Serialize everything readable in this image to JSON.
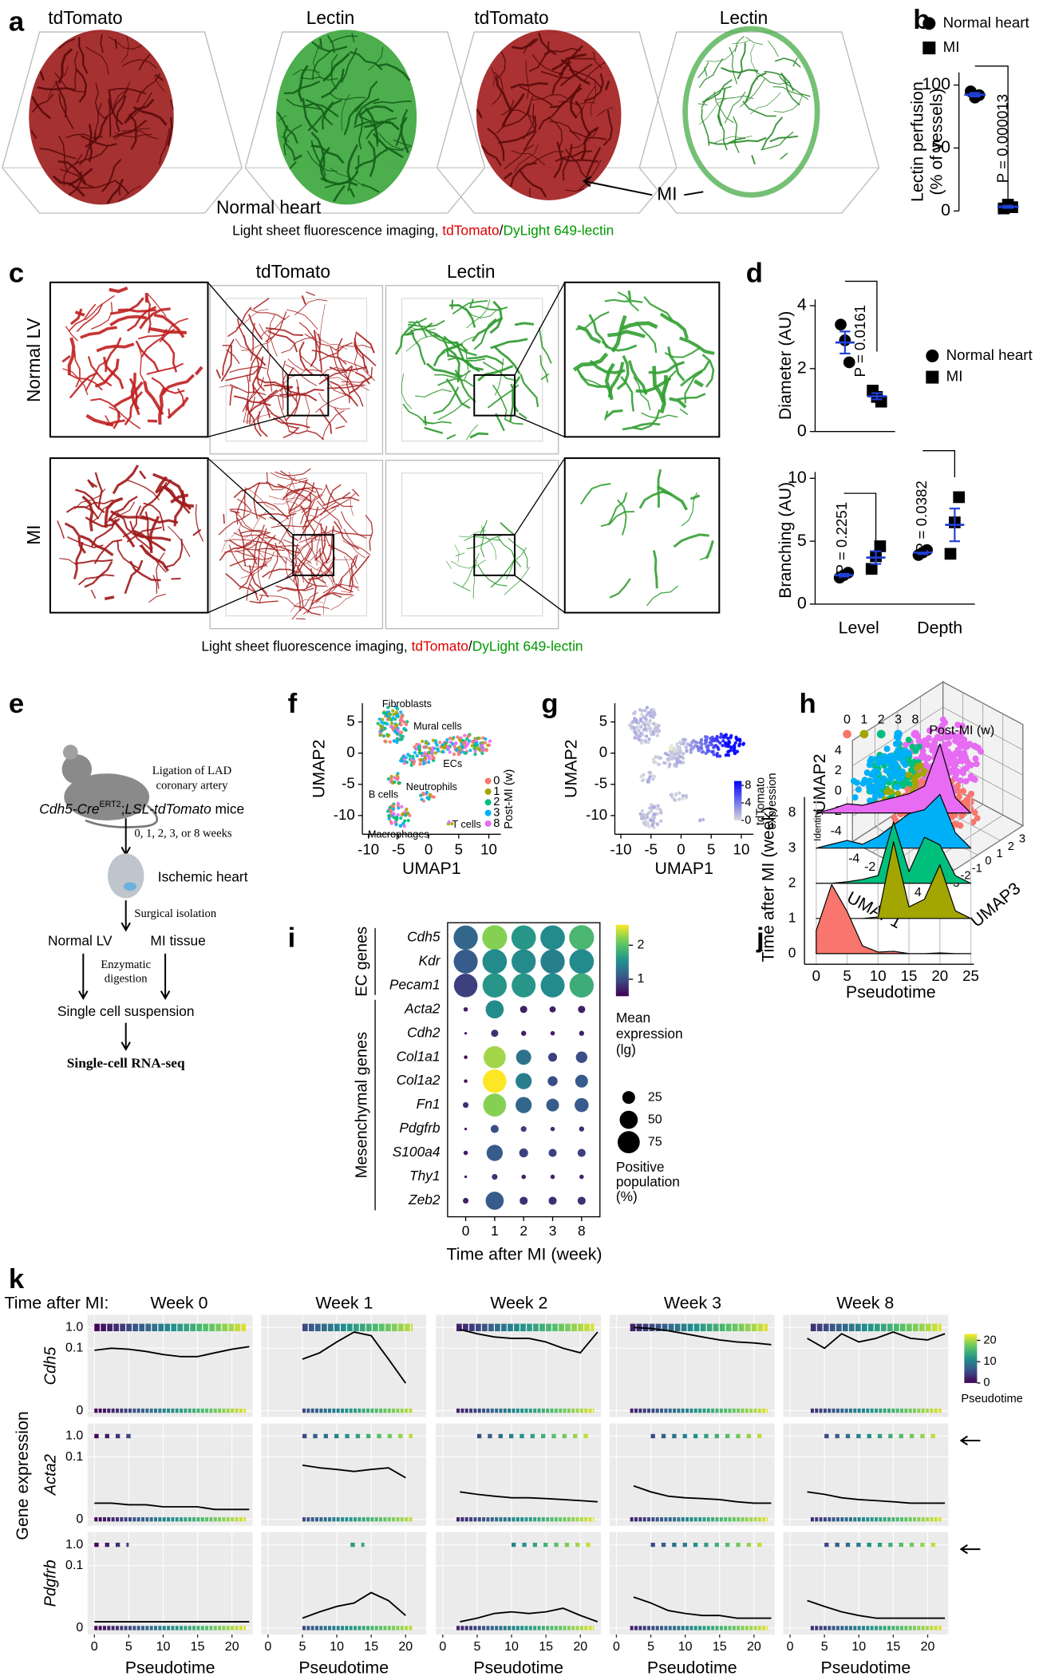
{
  "panel_letters": [
    "a",
    "b",
    "c",
    "d",
    "e",
    "f",
    "g",
    "h",
    "i",
    "j",
    "k"
  ],
  "figure_a": {
    "labels": [
      "tdTomato",
      "Lectin",
      "tdTomato",
      "Lectin"
    ],
    "normal_heart": "Normal heart",
    "mi": "MI",
    "caption": [
      "Light sheet fluorescence imaging, ",
      "tdTomato",
      "/",
      "DyLight 649-lectin"
    ]
  },
  "figure_c": {
    "columns": [
      "tdTomato",
      "Lectin"
    ],
    "rows": [
      "Normal LV",
      "MI"
    ],
    "caption": [
      "Light sheet fluorescence imaging, ",
      "tdTomato",
      "/",
      "DyLight 649-lectin"
    ]
  },
  "figure_e": {
    "ligation": [
      "Ligation of LAD",
      "coronary artery"
    ],
    "genotype": [
      "Cdh5-Cre",
      "ERT2",
      ";",
      "LSL-tdTomato",
      " mice"
    ],
    "times": "0, 1, 2, 3, or 8 weeks",
    "ischemic": "Ischemic heart",
    "surgical": "Surgical isolation",
    "normal_lv": "Normal LV",
    "mi_tissue": "MI tissue",
    "digestion": [
      "Enzymatic",
      "digestion"
    ],
    "suspension": "Single cell suspension",
    "sequencing": "Single-cell RNA-seq"
  },
  "chart_data": [
    {
      "type": "dot",
      "ylabel": [
        "Lectin perfusion",
        "(% of vessels)"
      ],
      "ylim": [
        0,
        110
      ],
      "yticks": [
        0,
        50,
        100
      ],
      "mean_color": "#1f3fd6",
      "annotations": [
        "P = 0.000013"
      ],
      "series": [
        {
          "name": "Normal heart",
          "marker": "circle",
          "values": [
            95,
            90,
            92
          ],
          "mean": 92.3,
          "sem": 1.5
        },
        {
          "name": "MI",
          "marker": "square",
          "values": [
            2,
            5,
            3
          ],
          "mean": 3.3,
          "sem": 0.9
        }
      ]
    },
    {
      "type": "dot",
      "ylabel": "Diameter (AU)",
      "ylim": [
        0,
        4.2
      ],
      "yticks": [
        0,
        2,
        4
      ],
      "mean_color": "#1f3fd6",
      "annotations": [
        "P = 0.0161"
      ],
      "series": [
        {
          "name": "Normal heart",
          "marker": "circle",
          "values": [
            3.4,
            2.9,
            2.2
          ],
          "mean": 2.83,
          "sem": 0.35
        },
        {
          "name": "MI",
          "marker": "square",
          "values": [
            1.3,
            1.1,
            0.95
          ],
          "mean": 1.12,
          "sem": 0.1
        }
      ]
    },
    {
      "type": "dot",
      "ylabel": "Branching (AU)",
      "ylim": [
        0,
        10.5
      ],
      "yticks": [
        0,
        5,
        10
      ],
      "categories": [
        "Level",
        "Depth"
      ],
      "mean_color": "#1f3fd6",
      "annotations": [
        "P = 0.2251",
        "P = 0.0382"
      ],
      "series": [
        {
          "name": "Normal heart",
          "marker": "circle",
          "values": [
            [
              2.1,
              2.3,
              2.5
            ],
            [
              3.9,
              4.1,
              4.3
            ]
          ],
          "mean": [
            2.3,
            4.1
          ],
          "sem": [
            0.12,
            0.12
          ]
        },
        {
          "name": "MI",
          "marker": "square",
          "values": [
            [
              2.8,
              3.8,
              4.6
            ],
            [
              4.0,
              6.5,
              8.5
            ]
          ],
          "mean": [
            3.7,
            6.3
          ],
          "sem": [
            0.5,
            1.3
          ]
        }
      ]
    },
    {
      "type": "umap",
      "xlabel": "UMAP1",
      "ylabel": "UMAP2",
      "xlim": [
        -11,
        12
      ],
      "ylim": [
        -13,
        8
      ],
      "xticks": [
        -10,
        -5,
        0,
        5,
        10
      ],
      "yticks": [
        -10,
        -5,
        0,
        5
      ],
      "cluster_labels": [
        "Fibroblasts",
        "Mural cells",
        "ECs",
        "B cells",
        "Neutrophils",
        "Macrophages",
        "T cells"
      ],
      "legend_title": "Post-MI (w)",
      "series": [
        {
          "name": "0",
          "color": "#f8766d"
        },
        {
          "name": "1",
          "color": "#a3a500"
        },
        {
          "name": "2",
          "color": "#00bf7d"
        },
        {
          "name": "3",
          "color": "#00b0f6"
        },
        {
          "name": "8",
          "color": "#e76bf3"
        }
      ]
    },
    {
      "type": "umap",
      "xlabel": "UMAP1",
      "ylabel": "UMAP2",
      "xlim": [
        -11,
        12
      ],
      "ylim": [
        -13,
        8
      ],
      "xticks": [
        -10,
        -5,
        0,
        5,
        10
      ],
      "yticks": [
        -10,
        -5,
        0,
        5
      ],
      "colorbar": {
        "label": [
          "tdTomato",
          "expression"
        ],
        "lim": [
          0,
          9
        ],
        "ticks": [
          0,
          4,
          8
        ],
        "colors": [
          "#d9d9d9",
          "#0000ff"
        ]
      }
    },
    {
      "type": "umap3d",
      "xlabel": "UMAP1",
      "ylabel": "UMAP2",
      "zlabel": "UMAP3",
      "xlim": [
        -5,
        5
      ],
      "ylim": [
        -5,
        5
      ],
      "zlim": [
        -4,
        4
      ],
      "xticks": [
        -4,
        -2,
        0,
        2,
        4
      ],
      "yticks": [
        -4,
        -2,
        0,
        2,
        4
      ],
      "zticks": [
        -3,
        -2,
        -1,
        0,
        1,
        2,
        3
      ],
      "legend_title": "Post-MI (w)",
      "series": [
        {
          "name": "0",
          "color": "#f8766d"
        },
        {
          "name": "1",
          "color": "#a3a500"
        },
        {
          "name": "2",
          "color": "#00bf7d"
        },
        {
          "name": "3",
          "color": "#00b0f6"
        },
        {
          "name": "8",
          "color": "#e76bf3"
        }
      ]
    },
    {
      "type": "dotplot",
      "xlabel": "Time after MI (week)",
      "categories": [
        "0",
        "1",
        "2",
        "3",
        "8"
      ],
      "groups": [
        {
          "name": "EC genes",
          "genes": [
            "Cdh5",
            "Kdr",
            "Pecam1"
          ]
        },
        {
          "name": "Mesenchymal genes",
          "genes": [
            "Acta2",
            "Cdh2",
            "Col1a1",
            "Col1a2",
            "Fn1",
            "Pdgfrb",
            "S100a4",
            "Thy1",
            "Zeb2"
          ]
        }
      ],
      "expression": [
        [
          1.2,
          2.2,
          1.6,
          1.5,
          1.9
        ],
        [
          1.1,
          1.5,
          1.5,
          1.4,
          1.5
        ],
        [
          0.9,
          1.6,
          1.6,
          1.5,
          1.8
        ],
        [
          0.7,
          1.5,
          0.7,
          0.7,
          0.7
        ],
        [
          0.6,
          0.8,
          0.7,
          0.7,
          0.7
        ],
        [
          0.6,
          2.3,
          1.3,
          0.9,
          1.0
        ],
        [
          0.6,
          2.6,
          1.4,
          1.0,
          1.1
        ],
        [
          0.8,
          2.2,
          1.2,
          1.1,
          1.1
        ],
        [
          0.6,
          1.0,
          0.9,
          0.8,
          0.8
        ],
        [
          0.7,
          1.1,
          0.9,
          0.9,
          0.9
        ],
        [
          0.6,
          0.8,
          0.7,
          0.7,
          0.7
        ],
        [
          0.7,
          1.1,
          0.8,
          0.8,
          0.8
        ]
      ],
      "percent": [
        [
          90,
          95,
          92,
          92,
          95
        ],
        [
          88,
          92,
          90,
          90,
          92
        ],
        [
          85,
          90,
          88,
          88,
          90
        ],
        [
          3,
          50,
          8,
          6,
          8
        ],
        [
          1,
          8,
          4,
          3,
          4
        ],
        [
          2,
          75,
          35,
          12,
          20
        ],
        [
          2,
          85,
          40,
          15,
          25
        ],
        [
          5,
          80,
          40,
          25,
          30
        ],
        [
          1,
          10,
          5,
          3,
          4
        ],
        [
          3,
          40,
          12,
          10,
          10
        ],
        [
          1,
          5,
          3,
          3,
          3
        ],
        [
          5,
          50,
          10,
          10,
          10
        ]
      ],
      "colorbar": {
        "title": [
          "Mean",
          "expression",
          "(lg)"
        ],
        "lim": [
          0.5,
          2.6
        ],
        "ticks": [
          1,
          2
        ],
        "scale": "viridis"
      },
      "size_legend": {
        "title": [
          "Positive",
          "population",
          "(%)"
        ],
        "values": [
          25,
          50,
          75
        ]
      }
    },
    {
      "type": "ridgeline",
      "xlabel": "Pseudotime",
      "ylabel": "Time after MI (week)",
      "legend_title": "Identity",
      "xlim": [
        -1.9,
        25.5
      ],
      "xticks": [
        0,
        5,
        10,
        15,
        20,
        25
      ],
      "x": [
        0,
        2.5,
        5,
        7.5,
        10,
        12.5,
        15,
        17.5,
        20,
        22.5,
        25
      ],
      "series": [
        {
          "name": "0",
          "color": "#f8766d",
          "values": [
            0.3,
            0.9,
            0.55,
            0.1,
            0.02,
            0.03,
            0.0,
            0.0,
            0.01,
            0,
            0
          ]
        },
        {
          "name": "1",
          "color": "#a3a500",
          "values": [
            0,
            0,
            0,
            0,
            0.02,
            1.0,
            0.15,
            0.25,
            0.7,
            0.1,
            0
          ]
        },
        {
          "name": "2",
          "color": "#00bf7d",
          "values": [
            0,
            0,
            0.02,
            0.05,
            0.1,
            0.8,
            0.15,
            0.6,
            0.5,
            0.1,
            0
          ]
        },
        {
          "name": "3",
          "color": "#00b0f6",
          "values": [
            0,
            0.05,
            0.1,
            0.05,
            0.15,
            0.3,
            0.45,
            0.5,
            0.7,
            0.2,
            0
          ]
        },
        {
          "name": "8",
          "color": "#e76bf3",
          "values": [
            0,
            0.05,
            0.12,
            0.1,
            0.15,
            0.2,
            0.25,
            0.35,
            0.9,
            0.2,
            0
          ]
        }
      ]
    },
    {
      "type": "facet_line",
      "column_title": "Time after MI:",
      "column_labels": [
        "Week 0",
        "Week 1",
        "Week 2",
        "Week 3",
        "Week 8"
      ],
      "row_labels": [
        "Cdh5",
        "Acta2",
        "Pdgfrb"
      ],
      "ylabel": "Gene expression",
      "xlabel": "Pseudotime",
      "xlim": [
        -1,
        23
      ],
      "xticks": [
        0,
        5,
        10,
        15,
        20
      ],
      "ylim": [
        0,
        2
      ],
      "yscale": "pseudo-log",
      "yticks": [
        0,
        0.1,
        {
          "value": 1,
          "label": "1.0"
        }
      ],
      "curve_color": "#000000",
      "colorbar": {
        "label": "Pseudotime",
        "lim": [
          0,
          23
        ],
        "ticks": [
          0,
          10,
          20
        ],
        "scale": "viridis"
      },
      "x": [
        0,
        2.5,
        5,
        7.5,
        10,
        12.5,
        15,
        17.5,
        20,
        22.5
      ],
      "panels": [
        [
          {
            "range": [
              0,
              22
            ],
            "high_range": [
              0,
              22
            ],
            "values": [
              0.08,
              0.1,
              0.09,
              0.07,
              0.05,
              0.04,
              0.04,
              0.06,
              0.09,
              0.12
            ]
          },
          {
            "range": [
              5,
              21
            ],
            "high_range": [
              5,
              21
            ],
            "values": [
              null,
              null,
              0.03,
              0.06,
              0.2,
              0.6,
              0.4,
              0.03,
              0.002,
              null
            ]
          },
          {
            "range": [
              2,
              22
            ],
            "high_range": [
              2,
              22
            ],
            "values": [
              null,
              0.8,
              0.5,
              0.35,
              0.3,
              0.3,
              0.2,
              0.1,
              0.06,
              0.6
            ]
          },
          {
            "range": [
              2,
              22
            ],
            "high_range": [
              2,
              22
            ],
            "values": [
              null,
              1.0,
              0.9,
              0.7,
              0.5,
              0.35,
              0.25,
              0.2,
              0.18,
              0.15
            ]
          },
          {
            "range": [
              3,
              22
            ],
            "high_range": [
              3,
              22
            ],
            "values": [
              null,
              0.3,
              0.1,
              0.5,
              0.2,
              0.3,
              0.6,
              0.3,
              0.25,
              0.5
            ]
          }
        ],
        [
          {
            "range": [
              0,
              22
            ],
            "high_range": [
              0,
              6
            ],
            "values": [
              0.0005,
              0.0005,
              0.0004,
              0.0004,
              0.0003,
              0.0003,
              0.0003,
              0.0002,
              0.0002,
              0.0002
            ]
          },
          {
            "range": [
              5,
              21
            ],
            "high_range": [
              5,
              21
            ],
            "values": [
              null,
              null,
              0.04,
              0.03,
              0.025,
              0.02,
              0.025,
              0.03,
              0.01,
              null
            ]
          },
          {
            "range": [
              2,
              22
            ],
            "high_range": [
              5,
              22
            ],
            "values": [
              null,
              0.002,
              0.0015,
              0.0012,
              0.001,
              0.001,
              0.0009,
              0.0008,
              0.0007,
              0.0006
            ]
          },
          {
            "range": [
              2,
              22
            ],
            "high_range": [
              5,
              22
            ],
            "values": [
              null,
              0.004,
              0.002,
              0.0012,
              0.001,
              0.0009,
              0.0008,
              0.0006,
              0.0005,
              0.0005
            ]
          },
          {
            "range": [
              3,
              22
            ],
            "high_range": [
              5,
              22
            ],
            "values": [
              null,
              0.002,
              0.0015,
              0.001,
              0.0008,
              0.0007,
              0.0006,
              0.0005,
              0.0005,
              0.0005
            ]
          }
        ],
        [
          {
            "range": [
              0,
              22
            ],
            "high_range": [
              0,
              5
            ],
            "values": [
              0.0001,
              0.0001,
              0.0001,
              0.0001,
              0.0001,
              0.0001,
              0.0001,
              0.0001,
              0.0001,
              0.0001
            ]
          },
          {
            "range": [
              5,
              21
            ],
            "high_range": [
              12,
              14
            ],
            "values": [
              null,
              null,
              0.0002,
              0.0005,
              0.001,
              0.0015,
              0.005,
              0.002,
              0.0003,
              null
            ]
          },
          {
            "range": [
              2,
              22
            ],
            "high_range": [
              10,
              22
            ],
            "values": [
              null,
              0.0001,
              0.0002,
              0.0004,
              0.0005,
              0.0004,
              0.0005,
              0.0008,
              0.0003,
              0.0001
            ]
          },
          {
            "range": [
              2,
              22
            ],
            "high_range": [
              5,
              22
            ],
            "values": [
              null,
              0.003,
              0.0015,
              0.0006,
              0.0004,
              0.0003,
              0.0003,
              0.0002,
              0.0002,
              0.0002
            ]
          },
          {
            "range": [
              3,
              22
            ],
            "high_range": [
              5,
              22
            ],
            "values": [
              null,
              0.002,
              0.001,
              0.0005,
              0.0003,
              0.0002,
              0.0002,
              0.0002,
              0.0002,
              0.0002
            ]
          }
        ]
      ]
    }
  ]
}
